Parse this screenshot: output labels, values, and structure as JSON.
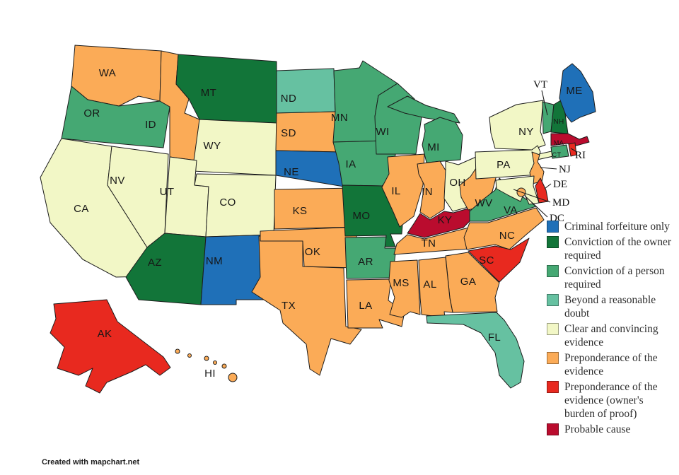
{
  "map": {
    "attribution": "Created with mapchart.net",
    "states": [
      {
        "id": "WA",
        "label": "WA",
        "category": "preponderance"
      },
      {
        "id": "OR",
        "label": "OR",
        "category": "conviction_person"
      },
      {
        "id": "CA",
        "label": "CA",
        "category": "clear_convincing"
      },
      {
        "id": "NV",
        "label": "NV",
        "category": "clear_convincing"
      },
      {
        "id": "ID",
        "label": "ID",
        "category": "preponderance"
      },
      {
        "id": "MT",
        "label": "MT",
        "category": "conviction_owner"
      },
      {
        "id": "WY",
        "label": "WY",
        "category": "clear_convincing"
      },
      {
        "id": "UT",
        "label": "UT",
        "category": "clear_convincing"
      },
      {
        "id": "CO",
        "label": "CO",
        "category": "clear_convincing"
      },
      {
        "id": "AZ",
        "label": "AZ",
        "category": "conviction_owner"
      },
      {
        "id": "NM",
        "label": "NM",
        "category": "criminal"
      },
      {
        "id": "TX",
        "label": "TX",
        "category": "preponderance"
      },
      {
        "id": "ND",
        "label": "ND",
        "category": "beyond_reasonable_doubt"
      },
      {
        "id": "SD",
        "label": "SD",
        "category": "preponderance"
      },
      {
        "id": "NE",
        "label": "NE",
        "category": "criminal"
      },
      {
        "id": "KS",
        "label": "KS",
        "category": "preponderance"
      },
      {
        "id": "OK",
        "label": "OK",
        "category": "preponderance"
      },
      {
        "id": "MN",
        "label": "MN",
        "category": "conviction_person"
      },
      {
        "id": "IA",
        "label": "IA",
        "category": "conviction_person"
      },
      {
        "id": "MO",
        "label": "MO",
        "category": "conviction_owner"
      },
      {
        "id": "AR",
        "label": "AR",
        "category": "conviction_person"
      },
      {
        "id": "LA",
        "label": "LA",
        "category": "preponderance"
      },
      {
        "id": "WI",
        "label": "WI",
        "category": "conviction_person"
      },
      {
        "id": "MI",
        "label": "MI",
        "category": "conviction_person"
      },
      {
        "id": "IL",
        "label": "IL",
        "category": "preponderance"
      },
      {
        "id": "IN",
        "label": "IN",
        "category": "preponderance"
      },
      {
        "id": "OH",
        "label": "OH",
        "category": "clear_convincing"
      },
      {
        "id": "KY",
        "label": "KY",
        "category": "probable_cause"
      },
      {
        "id": "TN",
        "label": "TN",
        "category": "preponderance"
      },
      {
        "id": "WV",
        "label": "WV",
        "category": "preponderance"
      },
      {
        "id": "VA",
        "label": "VA",
        "category": "conviction_person"
      },
      {
        "id": "NC",
        "label": "NC",
        "category": "preponderance"
      },
      {
        "id": "SC",
        "label": "SC",
        "category": "preponderance_owner"
      },
      {
        "id": "GA",
        "label": "GA",
        "category": "preponderance"
      },
      {
        "id": "AL",
        "label": "AL",
        "category": "preponderance"
      },
      {
        "id": "MS",
        "label": "MS",
        "category": "preponderance"
      },
      {
        "id": "FL",
        "label": "FL",
        "category": "beyond_reasonable_doubt"
      },
      {
        "id": "NY",
        "label": "NY",
        "category": "clear_convincing"
      },
      {
        "id": "PA",
        "label": "PA",
        "category": "clear_convincing"
      },
      {
        "id": "NJ",
        "label": "NJ",
        "category": "preponderance"
      },
      {
        "id": "DE",
        "label": "DE",
        "category": "preponderance_owner"
      },
      {
        "id": "MD",
        "label": "MD",
        "category": "clear_convincing"
      },
      {
        "id": "DC",
        "label": "DC",
        "category": "preponderance"
      },
      {
        "id": "VT",
        "label": "VT",
        "category": "conviction_person"
      },
      {
        "id": "NH",
        "label": "NH",
        "category": "conviction_owner"
      },
      {
        "id": "ME",
        "label": "ME",
        "category": "criminal"
      },
      {
        "id": "MA",
        "label": "MA",
        "category": "probable_cause"
      },
      {
        "id": "CT",
        "label": "CT",
        "category": "conviction_person"
      },
      {
        "id": "RI",
        "label": "RI",
        "category": "preponderance_owner"
      },
      {
        "id": "AK",
        "label": "AK",
        "category": "preponderance_owner"
      },
      {
        "id": "HI",
        "label": "HI",
        "category": "preponderance"
      }
    ]
  },
  "legend": {
    "items": [
      {
        "id": "criminal",
        "color": "#1f70b8",
        "label": "Criminal forfeiture only"
      },
      {
        "id": "conviction_owner",
        "color": "#127539",
        "label": "Conviction of the owner required"
      },
      {
        "id": "conviction_person",
        "color": "#45a873",
        "label": "Conviction of a person required"
      },
      {
        "id": "beyond_reasonable_doubt",
        "color": "#66c1a1",
        "label": "Beyond a reasonable doubt"
      },
      {
        "id": "clear_convincing",
        "color": "#f2f7c6",
        "label": "Clear and convincing evidence"
      },
      {
        "id": "preponderance",
        "color": "#fbab57",
        "label": "Preponderance of the evidence"
      },
      {
        "id": "preponderance_owner",
        "color": "#e8291f",
        "label": "Preponderance of the evidence (owner's burden of proof)"
      },
      {
        "id": "probable_cause",
        "color": "#ba0c2e",
        "label": "Probable cause"
      }
    ]
  }
}
